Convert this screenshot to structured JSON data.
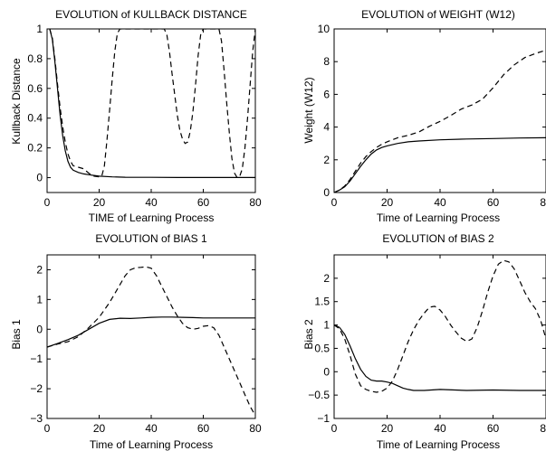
{
  "chart_data": [
    {
      "type": "line",
      "title": "EVOLUTION of KULLBACK DISTANCE",
      "xlabel": "TIME of Learning Process",
      "ylabel": "Kullback Distance",
      "xlim": [
        0,
        80
      ],
      "ylim": [
        -0.1,
        1
      ],
      "xticks": [
        0,
        20,
        40,
        60,
        80
      ],
      "yticks": [
        0,
        0.2,
        0.4,
        0.6,
        0.8,
        1
      ],
      "xtick_labels": [
        "0",
        "20",
        "40",
        "60",
        "80"
      ],
      "ytick_labels": [
        "0",
        "0.2",
        "0.4",
        "0.6",
        "0.8",
        "1"
      ],
      "series": [
        {
          "style": "solid",
          "x": [
            1,
            2,
            3,
            4,
            5,
            6,
            7,
            8,
            9,
            10,
            12,
            14,
            16,
            18,
            20,
            25,
            30,
            40,
            50,
            60,
            70,
            80
          ],
          "y": [
            1.0,
            0.93,
            0.78,
            0.6,
            0.42,
            0.28,
            0.18,
            0.11,
            0.07,
            0.05,
            0.035,
            0.025,
            0.02,
            0.015,
            0.01,
            0.005,
            0.003,
            0.002,
            0.001,
            0.001,
            0.001,
            0.001
          ]
        },
        {
          "style": "dashed",
          "x": [
            1,
            2,
            3,
            4,
            5,
            6,
            7,
            8,
            9,
            10,
            12,
            14,
            16,
            18,
            20,
            21,
            22,
            23,
            24,
            25,
            26,
            27,
            28,
            45,
            46,
            47,
            48,
            49,
            50,
            51,
            52,
            53,
            54,
            55,
            56,
            57,
            58,
            59,
            60,
            66,
            67,
            68,
            69,
            70,
            71,
            72,
            73,
            74,
            75,
            76,
            77,
            78,
            79,
            80
          ],
          "y": [
            1.0,
            0.94,
            0.8,
            0.63,
            0.47,
            0.34,
            0.24,
            0.16,
            0.11,
            0.08,
            0.07,
            0.06,
            0.03,
            0.01,
            0.005,
            0.01,
            0.08,
            0.25,
            0.45,
            0.66,
            0.85,
            0.97,
            1.0,
            1.0,
            0.96,
            0.85,
            0.7,
            0.56,
            0.42,
            0.32,
            0.26,
            0.23,
            0.24,
            0.31,
            0.44,
            0.62,
            0.82,
            0.96,
            1.0,
            1.0,
            0.92,
            0.72,
            0.5,
            0.3,
            0.13,
            0.03,
            0.0,
            0.01,
            0.06,
            0.2,
            0.4,
            0.63,
            0.85,
            1.0
          ]
        }
      ]
    },
    {
      "type": "line",
      "title": "EVOLUTION of WEIGHT (W12)",
      "xlabel": "Time of Learning Process",
      "ylabel": "Weight (W12)",
      "xlim": [
        0,
        80
      ],
      "ylim": [
        0,
        10
      ],
      "xticks": [
        0,
        20,
        40,
        60,
        80
      ],
      "yticks": [
        0,
        2,
        4,
        6,
        8,
        10
      ],
      "xtick_labels": [
        "0",
        "20",
        "40",
        "60",
        "80"
      ],
      "ytick_labels": [
        "0",
        "2",
        "4",
        "6",
        "8",
        "10"
      ],
      "series": [
        {
          "style": "solid",
          "x": [
            0,
            2,
            4,
            6,
            8,
            10,
            12,
            14,
            16,
            18,
            20,
            24,
            28,
            32,
            40,
            50,
            60,
            70,
            80
          ],
          "y": [
            0.0,
            0.15,
            0.35,
            0.7,
            1.15,
            1.6,
            2.0,
            2.35,
            2.6,
            2.75,
            2.85,
            3.0,
            3.1,
            3.15,
            3.22,
            3.27,
            3.3,
            3.33,
            3.35
          ]
        },
        {
          "style": "dashed",
          "x": [
            0,
            2,
            4,
            6,
            8,
            10,
            12,
            14,
            16,
            18,
            20,
            24,
            28,
            32,
            36,
            40,
            44,
            48,
            52,
            56,
            60,
            64,
            68,
            72,
            76,
            80
          ],
          "y": [
            0.0,
            0.15,
            0.4,
            0.8,
            1.3,
            1.8,
            2.2,
            2.5,
            2.75,
            2.95,
            3.1,
            3.35,
            3.5,
            3.7,
            4.05,
            4.35,
            4.7,
            5.1,
            5.35,
            5.7,
            6.4,
            7.2,
            7.8,
            8.25,
            8.5,
            8.7
          ]
        }
      ]
    },
    {
      "type": "line",
      "title": "EVOLUTION of BIAS 1",
      "xlabel": "Time of Learning Process",
      "ylabel": "Bias 1",
      "xlim": [
        0,
        80
      ],
      "ylim": [
        -3,
        2.5
      ],
      "xticks": [
        0,
        20,
        40,
        60,
        80
      ],
      "yticks": [
        -3,
        -2,
        -1,
        0,
        1,
        2
      ],
      "xtick_labels": [
        "0",
        "20",
        "40",
        "60",
        "80"
      ],
      "ytick_labels": [
        "−3",
        "−2",
        "−1",
        "0",
        "1",
        "2"
      ],
      "series": [
        {
          "style": "solid",
          "x": [
            0,
            4,
            8,
            12,
            16,
            20,
            24,
            28,
            32,
            36,
            40,
            44,
            48,
            52,
            56,
            60,
            64,
            68,
            72,
            76,
            80
          ],
          "y": [
            -0.6,
            -0.48,
            -0.35,
            -0.2,
            0.0,
            0.2,
            0.33,
            0.37,
            0.36,
            0.38,
            0.4,
            0.41,
            0.41,
            0.4,
            0.39,
            0.38,
            0.38,
            0.38,
            0.38,
            0.38,
            0.38
          ]
        },
        {
          "style": "dashed",
          "x": [
            0,
            4,
            8,
            12,
            16,
            20,
            24,
            26,
            28,
            30,
            32,
            34,
            36,
            38,
            40,
            42,
            44,
            46,
            48,
            50,
            52,
            54,
            56,
            58,
            60,
            62,
            64,
            66,
            68,
            70,
            72,
            74,
            76,
            78,
            80
          ],
          "y": [
            -0.6,
            -0.5,
            -0.42,
            -0.25,
            0.05,
            0.4,
            0.9,
            1.2,
            1.5,
            1.8,
            2.0,
            2.07,
            2.08,
            2.1,
            2.05,
            1.8,
            1.45,
            1.1,
            0.75,
            0.45,
            0.2,
            0.05,
            0.0,
            0.03,
            0.1,
            0.12,
            0.05,
            -0.2,
            -0.6,
            -1.0,
            -1.4,
            -1.8,
            -2.2,
            -2.6,
            -2.9
          ]
        }
      ]
    },
    {
      "type": "line",
      "title": "EVOLUTION of BIAS 2",
      "xlabel": "Time of Learning Process",
      "ylabel": "Bias 2",
      "xlim": [
        0,
        80
      ],
      "ylim": [
        -1,
        2.5
      ],
      "xticks": [
        0,
        20,
        40,
        60,
        80
      ],
      "yticks": [
        -1,
        -0.5,
        0,
        0.5,
        1,
        1.5,
        2
      ],
      "xtick_labels": [
        "0",
        "20",
        "40",
        "60",
        "80"
      ],
      "ytick_labels": [
        "−1",
        "−0.5",
        "0",
        "0.5",
        "1",
        "1.5",
        "2"
      ],
      "series": [
        {
          "style": "solid",
          "x": [
            0,
            2,
            4,
            6,
            8,
            10,
            12,
            14,
            16,
            18,
            20,
            22,
            24,
            26,
            28,
            30,
            34,
            40,
            50,
            60,
            70,
            80
          ],
          "y": [
            1.0,
            0.95,
            0.8,
            0.55,
            0.28,
            0.05,
            -0.1,
            -0.18,
            -0.2,
            -0.2,
            -0.22,
            -0.25,
            -0.3,
            -0.35,
            -0.38,
            -0.4,
            -0.4,
            -0.38,
            -0.4,
            -0.39,
            -0.4,
            -0.4
          ]
        },
        {
          "style": "dashed",
          "x": [
            0,
            2,
            4,
            6,
            8,
            10,
            12,
            14,
            16,
            18,
            20,
            22,
            24,
            26,
            28,
            30,
            32,
            34,
            36,
            38,
            40,
            42,
            44,
            46,
            48,
            50,
            52,
            54,
            56,
            58,
            60,
            62,
            64,
            66,
            68,
            70,
            72,
            74,
            76,
            78,
            80
          ],
          "y": [
            1.0,
            0.92,
            0.7,
            0.35,
            -0.05,
            -0.3,
            -0.38,
            -0.42,
            -0.44,
            -0.42,
            -0.35,
            -0.2,
            0.05,
            0.35,
            0.65,
            0.9,
            1.1,
            1.25,
            1.38,
            1.4,
            1.32,
            1.18,
            1.0,
            0.85,
            0.72,
            0.65,
            0.7,
            0.95,
            1.3,
            1.7,
            2.05,
            2.3,
            2.38,
            2.35,
            2.2,
            1.95,
            1.7,
            1.5,
            1.35,
            1.1,
            0.7
          ]
        }
      ]
    }
  ]
}
